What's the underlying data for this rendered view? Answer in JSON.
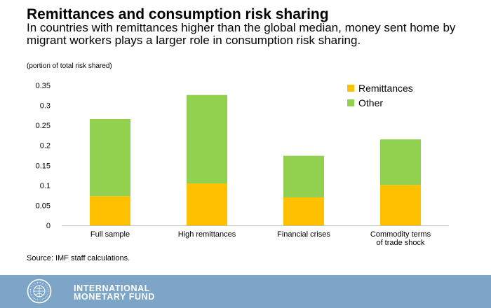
{
  "header": {
    "title": "Remittances and consumption risk sharing",
    "subtitle": "In countries with remittances higher than the global median, money sent home by migrant workers plays a larger role in consumption risk sharing.",
    "unit_note": "(portion of total risk shared)"
  },
  "chart_data": {
    "type": "bar",
    "stacked": true,
    "categories": [
      [
        "Full sample"
      ],
      [
        "High remittances"
      ],
      [
        "Financial crises"
      ],
      [
        "Commodity terms",
        "of trade shock"
      ]
    ],
    "series": [
      {
        "name": "Remittances",
        "color": "#ffc000",
        "values": [
          0.073,
          0.105,
          0.07,
          0.101
        ]
      },
      {
        "name": "Other",
        "color": "#92d050",
        "values": [
          0.193,
          0.221,
          0.104,
          0.114
        ]
      }
    ],
    "ylim": [
      0,
      0.35
    ],
    "yticks": [
      "0",
      "0.05",
      "0.1",
      "0.15",
      "0.2",
      "0.25",
      "0.3",
      "0.35"
    ],
    "grid": false,
    "legend": "top-right"
  },
  "source": "Source: IMF staff calculations.",
  "footer": {
    "org_line1": "INTERNATIONAL",
    "org_line2": "MONETARY FUND",
    "logo_icon": "imf-seal-icon"
  }
}
